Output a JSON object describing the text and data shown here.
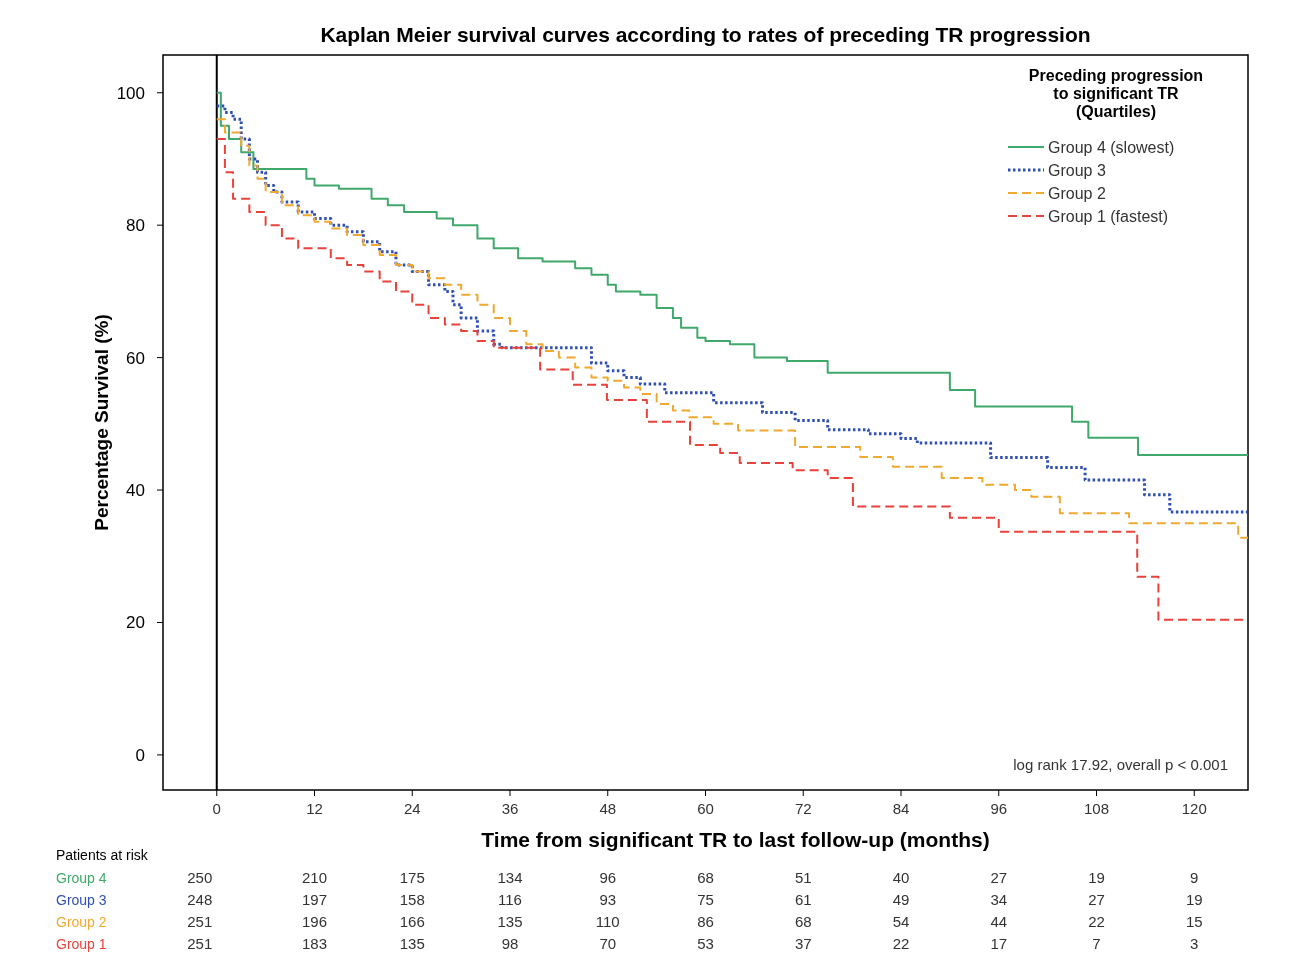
{
  "chart_data": {
    "type": "step",
    "title": "Kaplan Meier survival curves according to rates of preceding TR progression",
    "xlabel": "Time from significant TR to last follow-up  (months)",
    "ylabel": "Percentage Survival (%)",
    "legend_title": "Preceding progression to significant TR (Quartiles)",
    "legend": "top right",
    "xlim": [
      -6.6,
      126.6
    ],
    "ylim": [
      -5.3,
      105.7
    ],
    "xticks": [
      0,
      12,
      24,
      36,
      48,
      60,
      72,
      84,
      96,
      108,
      120
    ],
    "yticks": [
      0,
      20,
      40,
      60,
      80,
      100
    ],
    "grid": false,
    "ref_lines": [
      {
        "axis": "x",
        "value": 0,
        "color": "#000000"
      }
    ],
    "series": [
      {
        "name": "Group 4 (slowest)",
        "color": "#3fa96b",
        "line_style": "solid",
        "x": [
          0,
          0.5,
          1.5,
          3,
          4.5,
          11,
          12,
          15,
          19,
          21,
          23,
          27,
          29,
          32,
          34,
          37,
          40,
          44,
          46,
          48,
          49,
          52,
          54,
          56,
          57,
          59,
          60,
          63,
          66,
          70,
          75,
          90,
          93.1,
          105,
          107,
          113.1,
          126.6
        ],
        "values": [
          100,
          95,
          93,
          91,
          88.5,
          87,
          86,
          85.5,
          84,
          83,
          82,
          81,
          80,
          78,
          76.5,
          75,
          74.5,
          73.5,
          72.5,
          71,
          70,
          69.5,
          67.5,
          66,
          64.5,
          63,
          62.5,
          62,
          60,
          59.5,
          57.7,
          55.1,
          52.6,
          50.3,
          47.9,
          45.3,
          45.3
        ]
      },
      {
        "name": "Group 3",
        "color": "#2f4fb5",
        "line_style": "dotted",
        "x": [
          0,
          1,
          2,
          3,
          4,
          5,
          6,
          7,
          8,
          10,
          12,
          14,
          16,
          18,
          20,
          22,
          24,
          26,
          28,
          29,
          30,
          32,
          34,
          35,
          46,
          48,
          50,
          52,
          55,
          61,
          67,
          71,
          75,
          80,
          84,
          86,
          95,
          102,
          106.6,
          113.9,
          117,
          126.6
        ],
        "values": [
          98,
          97,
          96,
          93,
          90,
          88,
          86,
          85,
          83.5,
          82,
          81,
          80,
          79,
          77.5,
          76,
          74,
          73,
          71,
          70,
          68,
          66,
          64,
          62,
          61.5,
          59.2,
          58,
          57,
          56,
          54.7,
          53.2,
          51.7,
          50.5,
          49.1,
          48.5,
          47.8,
          47.1,
          44.9,
          43.4,
          41.5,
          39.3,
          36.7,
          36.7
        ]
      },
      {
        "name": "Group 2",
        "color": "#f0a830",
        "line_style": "dashed",
        "x": [
          0,
          1,
          3,
          4,
          5,
          6,
          8,
          10,
          12,
          14,
          16,
          18,
          20,
          22,
          24,
          26,
          28,
          30,
          32,
          34,
          36,
          38,
          40,
          42,
          44,
          46,
          48,
          50,
          52,
          54,
          56,
          58,
          61,
          64,
          71,
          79,
          83,
          89,
          94,
          98,
          100,
          103.5,
          112,
          125.4,
          126.6
        ],
        "values": [
          96,
          94,
          92,
          89,
          87,
          85,
          83,
          81.5,
          80.5,
          79.5,
          78.5,
          77,
          75.5,
          74,
          73,
          72,
          71,
          69.5,
          68,
          66,
          64,
          62,
          61,
          60,
          58.5,
          57,
          56.5,
          55.5,
          54.5,
          53,
          52,
          51,
          50,
          49,
          46.5,
          45,
          43.5,
          41.8,
          40.8,
          40,
          39,
          36.5,
          35,
          32.8,
          32.8
        ]
      },
      {
        "name": "Group 1 (fastest)",
        "color": "#e8423a",
        "line_style": "dashed",
        "x": [
          0,
          1,
          2,
          4,
          6,
          8,
          10,
          14,
          16,
          18,
          20,
          22,
          24,
          26,
          28,
          30,
          32,
          34,
          39.7,
          43.7,
          47.9,
          52.8,
          58.1,
          61.8,
          64.2,
          70.7,
          75,
          78.1,
          90,
          96,
          113,
          115.6,
          126.6
        ],
        "values": [
          93,
          88,
          84,
          82,
          80,
          78,
          76.5,
          75,
          74,
          73,
          71.5,
          70,
          68,
          66,
          65,
          64,
          62.5,
          61.5,
          58.2,
          55.9,
          53.6,
          50.3,
          46.8,
          45.6,
          44.1,
          43,
          41.8,
          37.5,
          35.8,
          33.7,
          26.9,
          20.4,
          20.4
        ]
      }
    ],
    "annotations": [
      "log rank 17.92, overall p < 0.001",
      "Patients at risk",
      "Group 4",
      "Group 3",
      "Group 2",
      "Group 1",
      "250",
      "210",
      "175",
      "134",
      "96",
      "68",
      "51",
      "40",
      "27",
      "19",
      "9",
      "248",
      "197",
      "158",
      "116",
      "93",
      "75",
      "61",
      "49",
      "34",
      "27",
      "19",
      "251",
      "196",
      "166",
      "135",
      "110",
      "86",
      "68",
      "54",
      "44",
      "22",
      "15",
      "251",
      "183",
      "135",
      "98",
      "70",
      "53",
      "37",
      "22",
      "17",
      "7",
      "3"
    ]
  }
}
